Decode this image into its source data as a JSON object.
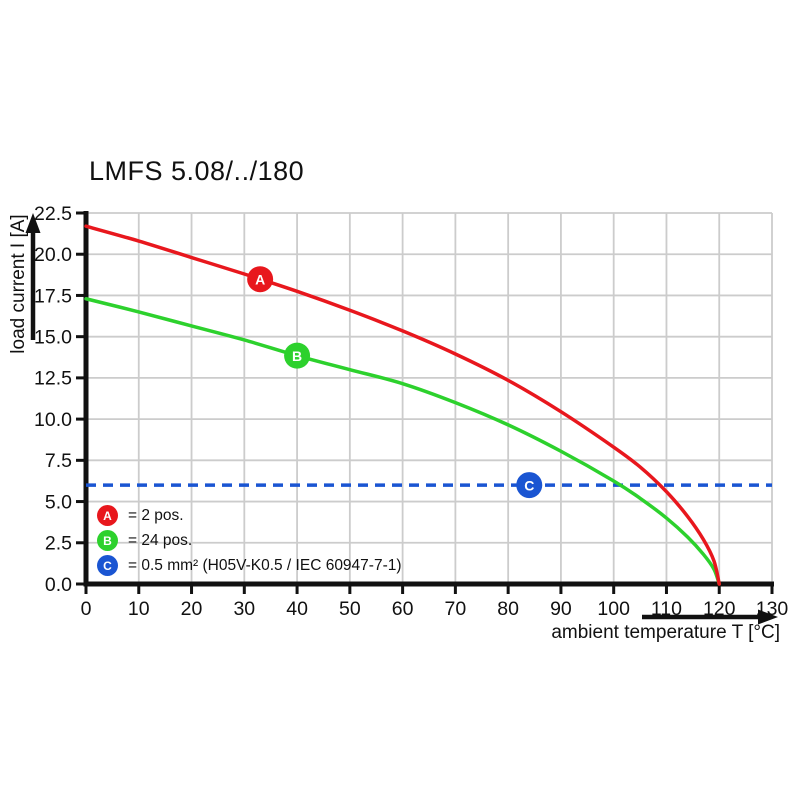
{
  "title": "LMFS 5.08/../180",
  "chart_data": {
    "type": "line",
    "title": "LMFS 5.08/../180",
    "xlabel": "ambient temperature T [°C]",
    "ylabel": "load current I [A]",
    "xlim": [
      0,
      130
    ],
    "ylim": [
      0,
      22.5
    ],
    "x_ticks": [
      0,
      10,
      20,
      30,
      40,
      50,
      60,
      70,
      80,
      90,
      100,
      110,
      120,
      130
    ],
    "y_ticks": [
      0.0,
      2.5,
      5.0,
      7.5,
      10.0,
      12.5,
      15.0,
      17.5,
      20.0,
      22.5
    ],
    "grid": true,
    "grid_color": "#cccccc",
    "axis_color": "#111111",
    "legend_position": "bottom-left-inside",
    "series": [
      {
        "name": "A",
        "label": "= 2 pos.",
        "color": "#e8171d",
        "kind": "curve",
        "x": [
          0,
          10,
          20,
          30,
          40,
          50,
          60,
          70,
          80,
          90,
          100,
          105,
          110,
          114,
          117,
          119,
          120
        ],
        "y": [
          21.7,
          20.8,
          19.8,
          18.8,
          17.75,
          16.6,
          15.35,
          13.95,
          12.35,
          10.45,
          8.3,
          7.1,
          5.6,
          4.1,
          2.7,
          1.4,
          0
        ],
        "marker_at_x": 33
      },
      {
        "name": "B",
        "label": "= 24 pos.",
        "color": "#2dd12d",
        "kind": "curve",
        "x": [
          0,
          10,
          20,
          30,
          40,
          50,
          60,
          70,
          80,
          90,
          100,
          105,
          110,
          114,
          117,
          119,
          120
        ],
        "y": [
          17.3,
          16.5,
          15.65,
          14.8,
          13.85,
          13.0,
          12.15,
          11.0,
          9.65,
          8.05,
          6.25,
          5.2,
          4.0,
          2.85,
          1.8,
          0.9,
          0
        ],
        "marker_at_x": 40
      },
      {
        "name": "C",
        "label": "= 0.5 mm² (H05V-K0.5 / IEC 60947-7-1)",
        "color": "#1a55d2",
        "kind": "dashed-horizontal",
        "value": 6,
        "marker_at_x": 84
      }
    ]
  }
}
